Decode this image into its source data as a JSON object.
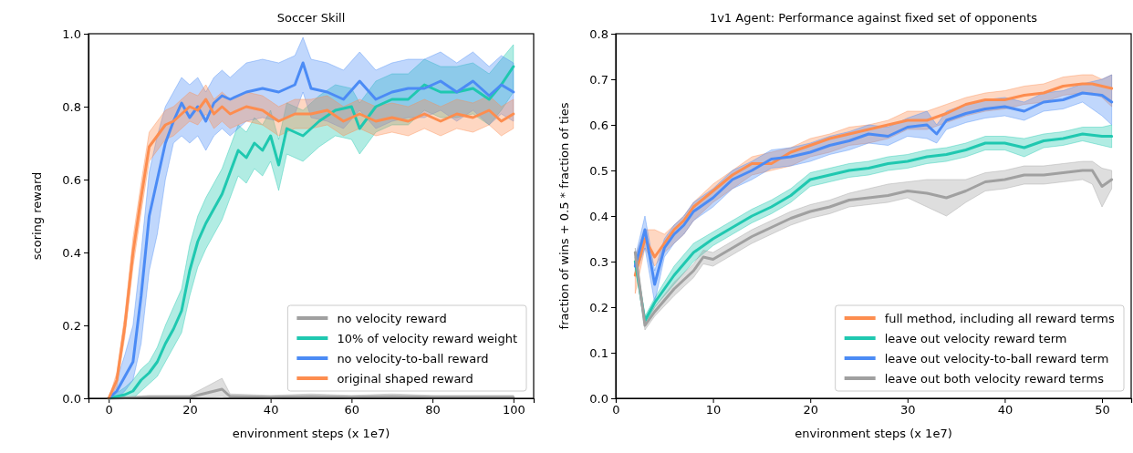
{
  "chart_data": [
    {
      "type": "line",
      "title": "Soccer Skill",
      "xlabel": "environment steps (x 1e7)",
      "ylabel": "scoring reward",
      "xlim": [
        -5,
        105
      ],
      "xticks": [
        0,
        20,
        40,
        60,
        80,
        100
      ],
      "ylim": [
        0,
        1
      ],
      "yticks": [
        {
          "value": 0,
          "label": "0.0"
        },
        {
          "value": 0.2,
          "label": "0.2"
        },
        {
          "value": 0.4,
          "label": "0.4"
        },
        {
          "value": 0.6,
          "label": "0.6"
        },
        {
          "value": 0.8,
          "label": "0.8"
        },
        {
          "value": 1,
          "label": "1.0"
        }
      ],
      "grid": false,
      "legend": "bottom right",
      "series": [
        {
          "name": "no velocity reward",
          "color": "#a0a0a0",
          "x": [
            0,
            10,
            20,
            28,
            30,
            40,
            50,
            60,
            70,
            80,
            90,
            100
          ],
          "values": [
            0,
            0.003,
            0.003,
            0.025,
            0.005,
            0.003,
            0.005,
            0.003,
            0.005,
            0.003,
            0.003,
            0.003
          ],
          "lower": [
            0,
            0,
            0,
            0.005,
            0,
            0,
            0,
            0,
            0,
            0,
            0,
            0
          ],
          "upper": [
            0,
            0.008,
            0.008,
            0.055,
            0.012,
            0.008,
            0.012,
            0.008,
            0.012,
            0.008,
            0.008,
            0.008
          ]
        },
        {
          "name": "10% of velocity reward weight",
          "color": "#1fc8b0",
          "x": [
            0,
            4,
            6,
            8,
            10,
            12,
            14,
            16,
            18,
            20,
            22,
            24,
            26,
            28,
            30,
            32,
            34,
            36,
            38,
            40,
            42,
            44,
            48,
            52,
            56,
            60,
            62,
            66,
            70,
            74,
            78,
            82,
            86,
            90,
            94,
            97,
            100
          ],
          "values": [
            0,
            0.01,
            0.02,
            0.05,
            0.07,
            0.1,
            0.15,
            0.19,
            0.24,
            0.35,
            0.43,
            0.48,
            0.52,
            0.56,
            0.62,
            0.68,
            0.66,
            0.7,
            0.68,
            0.72,
            0.64,
            0.74,
            0.72,
            0.76,
            0.79,
            0.8,
            0.74,
            0.8,
            0.82,
            0.82,
            0.86,
            0.84,
            0.84,
            0.85,
            0.82,
            0.86,
            0.91
          ],
          "lower": [
            0,
            0,
            0,
            0.02,
            0.04,
            0.06,
            0.1,
            0.14,
            0.18,
            0.28,
            0.36,
            0.41,
            0.45,
            0.49,
            0.55,
            0.61,
            0.59,
            0.63,
            0.61,
            0.65,
            0.57,
            0.67,
            0.65,
            0.69,
            0.72,
            0.71,
            0.67,
            0.73,
            0.75,
            0.75,
            0.79,
            0.77,
            0.77,
            0.78,
            0.75,
            0.79,
            0.84
          ],
          "upper": [
            0,
            0.03,
            0.05,
            0.08,
            0.1,
            0.14,
            0.2,
            0.25,
            0.3,
            0.42,
            0.5,
            0.55,
            0.59,
            0.63,
            0.69,
            0.75,
            0.73,
            0.77,
            0.75,
            0.79,
            0.71,
            0.81,
            0.79,
            0.83,
            0.86,
            0.85,
            0.81,
            0.87,
            0.89,
            0.89,
            0.93,
            0.91,
            0.91,
            0.92,
            0.89,
            0.93,
            0.97
          ]
        },
        {
          "name": "no velocity-to-ball reward",
          "color": "#4b8bf5",
          "x": [
            0,
            2,
            4,
            6,
            8,
            10,
            12,
            14,
            16,
            18,
            20,
            22,
            24,
            26,
            28,
            30,
            34,
            38,
            42,
            46,
            48,
            50,
            54,
            58,
            62,
            66,
            70,
            74,
            78,
            82,
            86,
            90,
            94,
            97,
            100
          ],
          "values": [
            0,
            0.02,
            0.06,
            0.1,
            0.28,
            0.5,
            0.6,
            0.7,
            0.76,
            0.81,
            0.77,
            0.8,
            0.76,
            0.81,
            0.83,
            0.82,
            0.84,
            0.85,
            0.84,
            0.86,
            0.92,
            0.85,
            0.84,
            0.82,
            0.87,
            0.82,
            0.84,
            0.85,
            0.85,
            0.87,
            0.84,
            0.87,
            0.83,
            0.86,
            0.84
          ],
          "lower": [
            0,
            0,
            0.02,
            0.05,
            0.15,
            0.35,
            0.45,
            0.6,
            0.7,
            0.72,
            0.7,
            0.72,
            0.68,
            0.72,
            0.74,
            0.72,
            0.76,
            0.77,
            0.76,
            0.78,
            0.84,
            0.77,
            0.76,
            0.74,
            0.79,
            0.74,
            0.76,
            0.77,
            0.77,
            0.79,
            0.76,
            0.79,
            0.75,
            0.78,
            0.76
          ],
          "upper": [
            0,
            0.05,
            0.12,
            0.2,
            0.4,
            0.62,
            0.72,
            0.8,
            0.84,
            0.88,
            0.86,
            0.88,
            0.84,
            0.88,
            0.9,
            0.88,
            0.92,
            0.93,
            0.92,
            0.94,
            0.99,
            0.93,
            0.92,
            0.9,
            0.95,
            0.9,
            0.92,
            0.93,
            0.93,
            0.95,
            0.92,
            0.95,
            0.91,
            0.94,
            0.92
          ]
        },
        {
          "name": "original shaped reward",
          "color": "#fd8d4f",
          "x": [
            0,
            2,
            4,
            6,
            8,
            10,
            12,
            14,
            16,
            18,
            20,
            22,
            24,
            26,
            28,
            30,
            34,
            38,
            42,
            46,
            50,
            54,
            58,
            62,
            66,
            70,
            74,
            78,
            82,
            86,
            90,
            94,
            97,
            100
          ],
          "values": [
            0,
            0.05,
            0.2,
            0.4,
            0.55,
            0.69,
            0.72,
            0.75,
            0.76,
            0.78,
            0.8,
            0.79,
            0.82,
            0.78,
            0.8,
            0.78,
            0.8,
            0.79,
            0.76,
            0.78,
            0.78,
            0.79,
            0.76,
            0.78,
            0.76,
            0.77,
            0.76,
            0.78,
            0.76,
            0.78,
            0.77,
            0.79,
            0.76,
            0.78
          ],
          "lower": [
            0,
            0.03,
            0.17,
            0.36,
            0.51,
            0.65,
            0.68,
            0.71,
            0.72,
            0.74,
            0.76,
            0.75,
            0.78,
            0.74,
            0.76,
            0.74,
            0.76,
            0.75,
            0.72,
            0.74,
            0.74,
            0.75,
            0.72,
            0.74,
            0.72,
            0.73,
            0.72,
            0.74,
            0.72,
            0.74,
            0.73,
            0.75,
            0.72,
            0.74
          ],
          "upper": [
            0,
            0.07,
            0.23,
            0.44,
            0.59,
            0.73,
            0.76,
            0.79,
            0.8,
            0.82,
            0.84,
            0.83,
            0.86,
            0.82,
            0.84,
            0.82,
            0.84,
            0.83,
            0.8,
            0.82,
            0.82,
            0.83,
            0.8,
            0.82,
            0.8,
            0.81,
            0.8,
            0.82,
            0.8,
            0.82,
            0.81,
            0.83,
            0.8,
            0.82
          ]
        }
      ]
    },
    {
      "type": "line",
      "title": "1v1 Agent: Performance against fixed set of opponents",
      "xlabel": "environment steps (x 1e7)",
      "ylabel": "fraction of wins + 0.5 * fraction of ties",
      "xlim": [
        0,
        53
      ],
      "xticks": [
        0,
        10,
        20,
        30,
        40,
        50
      ],
      "ylim": [
        0,
        0.8
      ],
      "yticks": [
        {
          "value": 0,
          "label": "0.0"
        },
        0.1,
        0.2,
        0.3,
        0.4,
        0.5,
        0.6,
        0.7,
        0.8
      ],
      "grid": false,
      "legend": "bottom right",
      "series": [
        {
          "name": "full method, including all reward terms",
          "color": "#fd8d4f",
          "x": [
            2,
            3,
            4,
            5,
            6,
            7,
            8,
            10,
            12,
            14,
            16,
            18,
            20,
            22,
            24,
            26,
            28,
            30,
            32,
            34,
            36,
            38,
            40,
            42,
            44,
            46,
            48,
            49,
            50,
            51
          ],
          "values": [
            0.27,
            0.35,
            0.31,
            0.34,
            0.37,
            0.39,
            0.42,
            0.455,
            0.49,
            0.515,
            0.515,
            0.54,
            0.555,
            0.57,
            0.58,
            0.59,
            0.6,
            0.61,
            0.61,
            0.625,
            0.645,
            0.655,
            0.655,
            0.665,
            0.67,
            0.685,
            0.69,
            0.69,
            0.685,
            0.68
          ],
          "lower": [
            0.23,
            0.33,
            0.29,
            0.32,
            0.34,
            0.36,
            0.39,
            0.43,
            0.46,
            0.49,
            0.5,
            0.51,
            0.53,
            0.54,
            0.555,
            0.56,
            0.57,
            0.59,
            0.59,
            0.605,
            0.62,
            0.63,
            0.635,
            0.645,
            0.65,
            0.665,
            0.67,
            0.67,
            0.66,
            0.64
          ],
          "upper": [
            0.31,
            0.37,
            0.37,
            0.36,
            0.38,
            0.4,
            0.43,
            0.47,
            0.5,
            0.53,
            0.54,
            0.55,
            0.57,
            0.58,
            0.595,
            0.6,
            0.61,
            0.63,
            0.63,
            0.645,
            0.66,
            0.67,
            0.675,
            0.685,
            0.69,
            0.705,
            0.71,
            0.71,
            0.7,
            0.71
          ]
        },
        {
          "name": "leave out velocity reward term",
          "color": "#1fc8b0",
          "x": [
            2,
            3,
            4,
            6,
            8,
            10,
            12,
            14,
            16,
            18,
            20,
            22,
            24,
            26,
            28,
            30,
            32,
            34,
            36,
            38,
            40,
            42,
            44,
            46,
            48,
            50,
            51
          ],
          "values": [
            0.3,
            0.17,
            0.21,
            0.27,
            0.32,
            0.35,
            0.375,
            0.4,
            0.42,
            0.445,
            0.48,
            0.49,
            0.5,
            0.505,
            0.515,
            0.52,
            0.53,
            0.535,
            0.545,
            0.56,
            0.56,
            0.55,
            0.565,
            0.57,
            0.58,
            0.575,
            0.575
          ],
          "lower": [
            0.29,
            0.16,
            0.2,
            0.25,
            0.3,
            0.335,
            0.36,
            0.385,
            0.405,
            0.43,
            0.465,
            0.475,
            0.485,
            0.49,
            0.5,
            0.505,
            0.515,
            0.52,
            0.53,
            0.545,
            0.545,
            0.53,
            0.55,
            0.555,
            0.565,
            0.555,
            0.55
          ],
          "upper": [
            0.31,
            0.18,
            0.22,
            0.29,
            0.34,
            0.365,
            0.39,
            0.415,
            0.435,
            0.46,
            0.495,
            0.505,
            0.515,
            0.52,
            0.53,
            0.535,
            0.545,
            0.55,
            0.56,
            0.575,
            0.575,
            0.57,
            0.58,
            0.585,
            0.595,
            0.595,
            0.6
          ]
        },
        {
          "name": "leave out velocity-to-ball reward term",
          "color": "#4b8bf5",
          "x": [
            2,
            3,
            4,
            5,
            6,
            7,
            8,
            10,
            12,
            14,
            16,
            18,
            20,
            22,
            24,
            26,
            28,
            30,
            32,
            33,
            34,
            36,
            38,
            40,
            42,
            44,
            46,
            48,
            50,
            51
          ],
          "values": [
            0.29,
            0.37,
            0.25,
            0.33,
            0.36,
            0.38,
            0.41,
            0.44,
            0.48,
            0.5,
            0.525,
            0.53,
            0.54,
            0.555,
            0.565,
            0.58,
            0.575,
            0.595,
            0.6,
            0.58,
            0.61,
            0.625,
            0.635,
            0.64,
            0.63,
            0.65,
            0.655,
            0.67,
            0.665,
            0.65
          ],
          "lower": [
            0.27,
            0.33,
            0.21,
            0.31,
            0.34,
            0.36,
            0.39,
            0.42,
            0.46,
            0.48,
            0.505,
            0.51,
            0.52,
            0.535,
            0.545,
            0.56,
            0.555,
            0.575,
            0.57,
            0.56,
            0.59,
            0.605,
            0.615,
            0.62,
            0.61,
            0.63,
            0.635,
            0.65,
            0.62,
            0.6
          ],
          "upper": [
            0.31,
            0.4,
            0.28,
            0.35,
            0.38,
            0.4,
            0.43,
            0.46,
            0.5,
            0.52,
            0.545,
            0.55,
            0.56,
            0.575,
            0.585,
            0.6,
            0.595,
            0.615,
            0.63,
            0.6,
            0.63,
            0.645,
            0.655,
            0.66,
            0.65,
            0.67,
            0.675,
            0.69,
            0.7,
            0.71
          ]
        },
        {
          "name": "leave out both velocity reward terms",
          "color": "#a0a0a0",
          "x": [
            2,
            3,
            4,
            6,
            8,
            9,
            10,
            12,
            14,
            16,
            18,
            20,
            22,
            24,
            26,
            28,
            30,
            32,
            34,
            36,
            38,
            40,
            42,
            44,
            46,
            48,
            49,
            50,
            51
          ],
          "values": [
            0.32,
            0.16,
            0.19,
            0.24,
            0.28,
            0.31,
            0.305,
            0.33,
            0.355,
            0.375,
            0.395,
            0.41,
            0.42,
            0.435,
            0.44,
            0.445,
            0.455,
            0.45,
            0.44,
            0.455,
            0.475,
            0.48,
            0.49,
            0.49,
            0.495,
            0.5,
            0.5,
            0.465,
            0.48
          ],
          "lower": [
            0.3,
            0.15,
            0.18,
            0.225,
            0.265,
            0.295,
            0.29,
            0.315,
            0.34,
            0.36,
            0.38,
            0.395,
            0.405,
            0.42,
            0.425,
            0.43,
            0.44,
            0.42,
            0.4,
            0.43,
            0.455,
            0.46,
            0.47,
            0.47,
            0.475,
            0.48,
            0.47,
            0.42,
            0.46
          ],
          "upper": [
            0.33,
            0.17,
            0.2,
            0.255,
            0.295,
            0.325,
            0.32,
            0.345,
            0.37,
            0.39,
            0.41,
            0.425,
            0.435,
            0.45,
            0.46,
            0.47,
            0.475,
            0.48,
            0.48,
            0.48,
            0.495,
            0.5,
            0.51,
            0.51,
            0.515,
            0.52,
            0.52,
            0.505,
            0.5
          ]
        }
      ]
    }
  ]
}
